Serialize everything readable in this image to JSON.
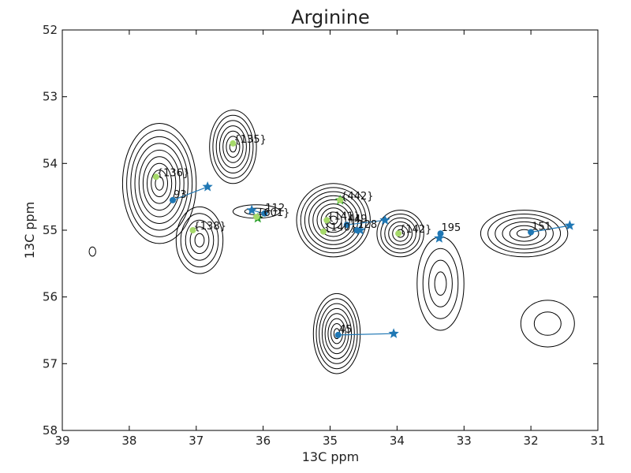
{
  "chart_data": {
    "type": "scatter",
    "title": "Arginine",
    "xlabel": "13C ppm",
    "ylabel": "13C ppm",
    "xlim": [
      39,
      31
    ],
    "ylim": [
      58,
      52
    ],
    "x_ticks": [
      "39",
      "38",
      "37",
      "36",
      "35",
      "34",
      "33",
      "32",
      "31"
    ],
    "y_ticks": [
      "52",
      "53",
      "54",
      "55",
      "56",
      "57",
      "58"
    ],
    "colors": {
      "blue": "#1f77b4",
      "green": "#2ca02c",
      "lightgreen": "#a6d96a",
      "contour": "#000000"
    },
    "green_points": [
      {
        "label": "{135}",
        "x": 36.45,
        "y": 53.7
      },
      {
        "label": "{136}",
        "x": 37.6,
        "y": 54.2
      },
      {
        "label": "{138}",
        "x": 37.05,
        "y": 55.0
      },
      {
        "label": "{442}",
        "x": 34.85,
        "y": 54.55
      },
      {
        "label": "{141}",
        "x": 35.05,
        "y": 54.85
      },
      {
        "label": "{140}",
        "x": 35.1,
        "y": 55.02
      },
      {
        "label": "{142}",
        "x": 33.98,
        "y": 55.05
      },
      {
        "label": "{601}",
        "x": 36.1,
        "y": 54.8
      }
    ],
    "assignments": [
      {
        "label": "93",
        "x": 37.35,
        "y": 54.55,
        "star_x": 36.83,
        "star_y": 54.35
      },
      {
        "label": "112",
        "x": 35.98,
        "y": 54.75,
        "star_x": 36.17,
        "star_y": 54.7
      },
      {
        "label": "449",
        "x": 34.75,
        "y": 54.92,
        "star_x": 34.18,
        "star_y": 54.85
      },
      {
        "label": "128",
        "x": 34.6,
        "y": 55.0,
        "star_x": 34.55,
        "star_y": 55.0
      },
      {
        "label": "195",
        "x": 33.35,
        "y": 55.05,
        "star_x": 33.37,
        "star_y": 55.12
      },
      {
        "label": "151",
        "x": 32.0,
        "y": 55.03,
        "star_x": 31.42,
        "star_y": 54.93
      },
      {
        "label": "45",
        "x": 34.88,
        "y": 56.57,
        "star_x": 34.05,
        "star_y": 56.55
      }
    ],
    "green_stars": [
      {
        "x": 36.08,
        "y": 54.82
      },
      {
        "x": 34.85,
        "y": 54.55
      }
    ],
    "contour_peaks": [
      {
        "x": 37.55,
        "y": 54.3,
        "rx": 0.55,
        "ry": 0.9,
        "levels": 9
      },
      {
        "x": 36.95,
        "y": 55.15,
        "rx": 0.35,
        "ry": 0.5,
        "levels": 5
      },
      {
        "x": 36.45,
        "y": 53.75,
        "rx": 0.35,
        "ry": 0.55,
        "levels": 7
      },
      {
        "x": 34.95,
        "y": 54.85,
        "rx": 0.55,
        "ry": 0.55,
        "levels": 9
      },
      {
        "x": 33.95,
        "y": 55.05,
        "rx": 0.35,
        "ry": 0.35,
        "levels": 6
      },
      {
        "x": 32.1,
        "y": 55.05,
        "rx": 0.65,
        "ry": 0.35,
        "levels": 6
      },
      {
        "x": 34.9,
        "y": 56.55,
        "rx": 0.35,
        "ry": 0.6,
        "levels": 8
      },
      {
        "x": 33.35,
        "y": 55.8,
        "rx": 0.35,
        "ry": 0.7,
        "levels": 4
      },
      {
        "x": 31.75,
        "y": 56.4,
        "rx": 0.4,
        "ry": 0.35,
        "levels": 2
      },
      {
        "x": 36.1,
        "y": 54.72,
        "rx": 0.35,
        "ry": 0.1,
        "levels": 2
      },
      {
        "x": 38.55,
        "y": 55.32,
        "rx": 0.05,
        "ry": 0.07,
        "levels": 1
      }
    ]
  }
}
